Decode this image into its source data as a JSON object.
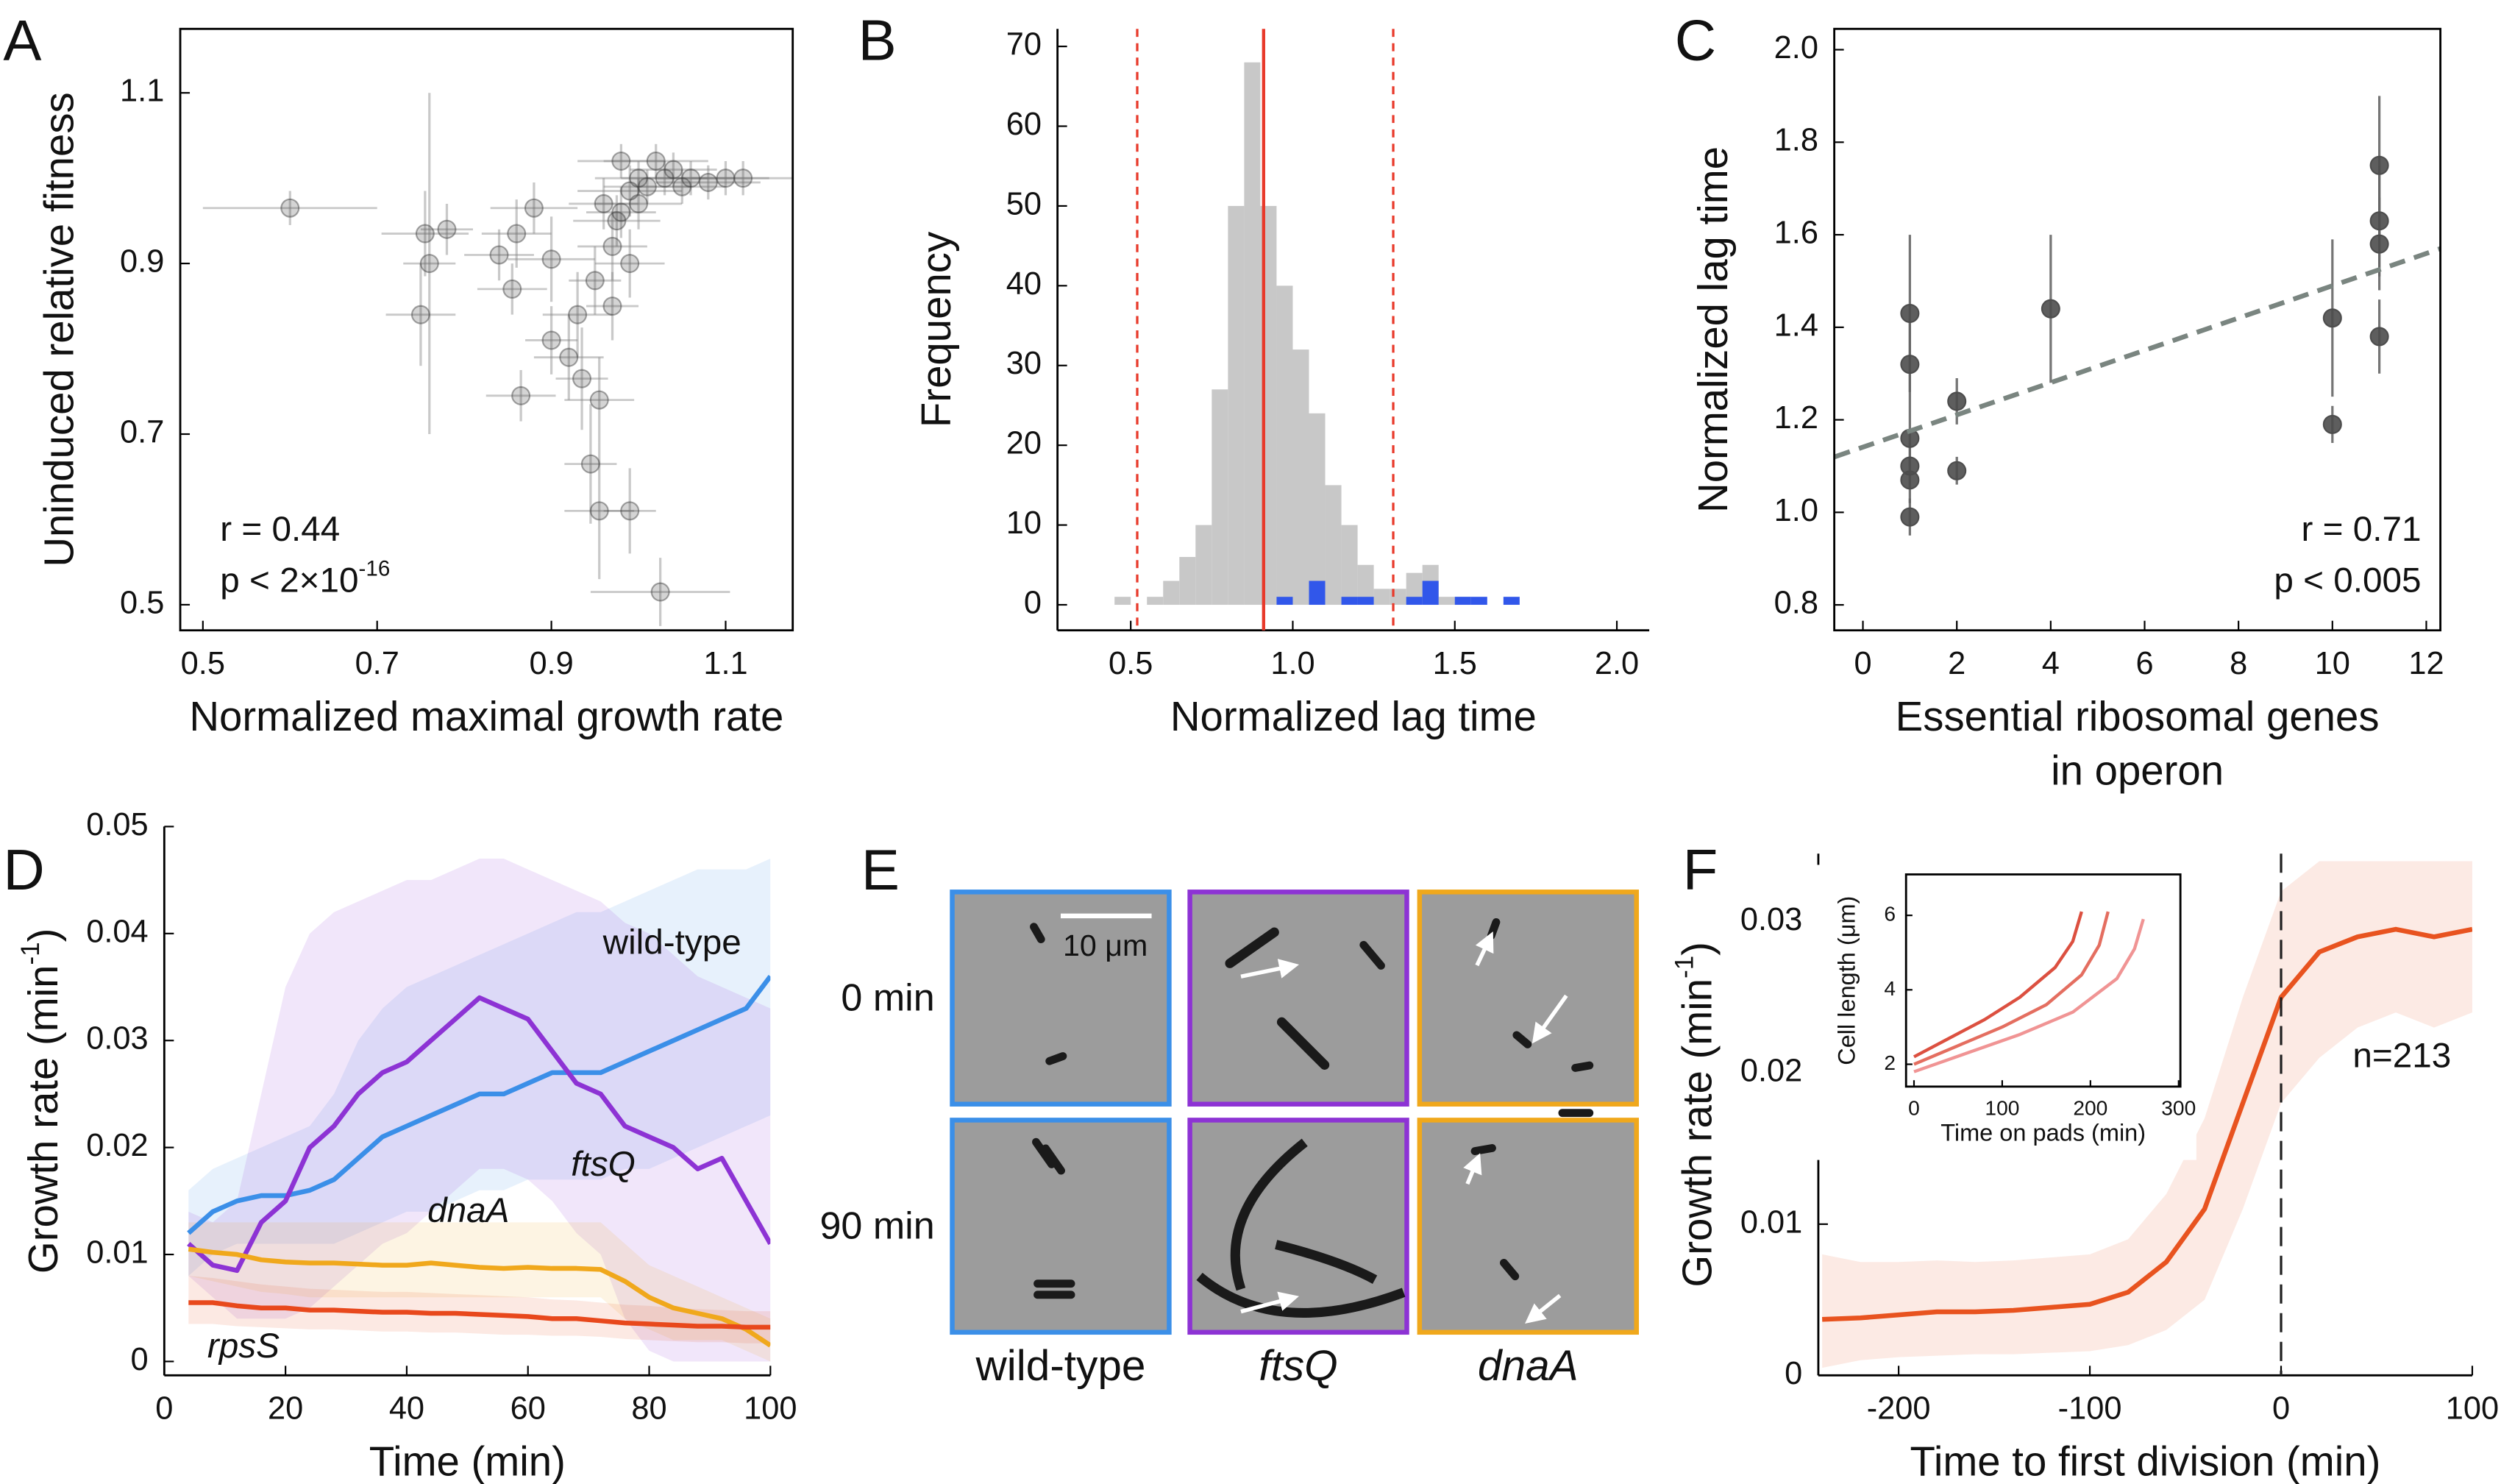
{
  "chart_data": [
    {
      "type": "scatter",
      "panel": "A",
      "box": true,
      "xlabel": "Normalized maximal growth rate",
      "ylabel": "Uninduced relative fitness",
      "xlim": [
        0.474,
        1.177
      ],
      "ylim": [
        0.47,
        1.175
      ],
      "xticks": [
        0.5,
        0.7,
        0.9,
        1.1
      ],
      "yticks": [
        0.5,
        0.7,
        0.9,
        1.1
      ],
      "color": "#3a3a3a",
      "x": [
        0.6,
        0.755,
        0.76,
        0.75,
        0.78,
        0.84,
        0.86,
        0.88,
        0.855,
        0.9,
        0.9,
        0.92,
        0.935,
        0.865,
        0.955,
        0.945,
        0.955,
        0.99,
        1.025,
        0.93,
        0.95,
        0.97,
        0.975,
        0.99,
        1.0,
        1.02,
        1.04,
        1.06,
        1.08,
        1.1,
        1.12,
        1.0,
        0.96,
        0.98,
        1.01,
        0.97,
        0.99,
        1.03,
        1.05,
        0.98
      ],
      "y": [
        0.965,
        0.935,
        0.9,
        0.84,
        0.94,
        0.91,
        0.935,
        0.965,
        0.87,
        0.905,
        0.81,
        0.79,
        0.765,
        0.745,
        0.74,
        0.665,
        0.61,
        0.61,
        0.515,
        0.84,
        0.88,
        0.92,
        0.95,
        0.985,
        1.0,
        1.02,
        1.01,
        1.0,
        0.995,
        1.0,
        1.0,
        0.97,
        0.97,
        1.02,
        0.99,
        0.85,
        0.9,
        1.0,
        0.99,
        0.96
      ],
      "xerr": [
        0.1,
        0.05,
        0.03,
        0.04,
        0.03,
        0.04,
        0.04,
        0.05,
        0.04,
        0.05,
        0.03,
        0.04,
        0.03,
        0.04,
        0.04,
        0.03,
        0.04,
        0.03,
        0.08,
        0.04,
        0.03,
        0.04,
        0.05,
        0.06,
        0.05,
        0.06,
        0.05,
        0.05,
        0.06,
        0.05,
        0.06,
        0.05,
        0.04,
        0.05,
        0.05,
        0.03,
        0.04,
        0.05,
        0.05,
        0.04
      ],
      "yerr": [
        0.02,
        0.05,
        0.2,
        0.06,
        0.03,
        0.03,
        0.04,
        0.03,
        0.03,
        0.05,
        0.04,
        0.05,
        0.06,
        0.03,
        0.05,
        0.07,
        0.08,
        0.05,
        0.04,
        0.05,
        0.04,
        0.04,
        0.03,
        0.03,
        0.02,
        0.02,
        0.02,
        0.02,
        0.02,
        0.02,
        0.02,
        0.03,
        0.03,
        0.02,
        0.02,
        0.04,
        0.04,
        0.02,
        0.02,
        0.03
      ],
      "annotations": [
        "r = 0.44",
        [
          "p < 2×10",
          "-16"
        ]
      ]
    },
    {
      "type": "histogram",
      "panel": "B",
      "box": false,
      "xlabel": "Normalized lag time",
      "ylabel": "Frequency",
      "xlim": [
        0.274,
        2.1
      ],
      "ylim": [
        -3.2,
        72.2
      ],
      "xticks": [
        0.5,
        {
          "value": 1.0,
          "label": "1.0"
        },
        1.5,
        {
          "value": 2.0,
          "label": "2.0"
        }
      ],
      "yticks": [
        0,
        10,
        20,
        30,
        40,
        50,
        60,
        70
      ],
      "series": [
        {
          "color": "#c8c8c8",
          "bins": [
            0.45,
            0.5,
            0.55,
            0.6,
            0.65,
            0.7,
            0.75,
            0.8,
            0.85,
            0.9,
            0.95,
            1.0,
            1.05,
            1.1,
            1.15,
            1.2,
            1.25,
            1.3,
            1.35,
            1.4,
            1.45,
            1.5,
            1.55
          ],
          "values": [
            1,
            0,
            1,
            3,
            6,
            10,
            27,
            50,
            68,
            50,
            40,
            32,
            24,
            15,
            10,
            5,
            2,
            2,
            4,
            5,
            1,
            1
          ]
        },
        {
          "color": "#3157ea",
          "bins": [
            0.95,
            1.0,
            1.05,
            1.1,
            1.15,
            1.2,
            1.25,
            1.3,
            1.35,
            1.4,
            1.45,
            1.5,
            1.55,
            1.6,
            1.65,
            1.7,
            1.75
          ],
          "values": [
            1,
            0,
            3,
            0,
            1,
            1,
            0,
            0,
            1,
            3,
            0,
            1,
            1,
            0,
            1,
            0
          ]
        }
      ],
      "vlines": [
        {
          "value": 0.52,
          "style": "dashed"
        },
        {
          "value": 0.91,
          "style": "solid"
        },
        {
          "value": 1.31,
          "style": "dashed"
        }
      ],
      "vline_color": "#e8392a"
    },
    {
      "type": "scatter",
      "panel": "C",
      "box": true,
      "xlabel_lines": [
        "Essential ribosomal genes",
        "in operon"
      ],
      "ylabel": "Normalized lag time",
      "xlim": [
        -0.61,
        12.3
      ],
      "ylim": [
        0.745,
        2.045
      ],
      "xticks": [
        0,
        2,
        4,
        6,
        8,
        10,
        12
      ],
      "yticks": [
        0.8,
        {
          "value": 1.0,
          "label": "1.0"
        },
        1.2,
        1.4,
        1.6,
        1.8,
        {
          "value": 2.0,
          "label": "2.0"
        }
      ],
      "color": "#4d4d4d",
      "x": [
        1,
        1,
        1,
        1,
        1,
        1,
        2,
        2,
        4,
        10,
        10,
        11,
        11,
        11,
        11
      ],
      "y": [
        1.43,
        1.32,
        1.16,
        1.1,
        1.07,
        0.99,
        1.24,
        1.09,
        1.44,
        1.42,
        1.19,
        1.75,
        1.63,
        1.58,
        1.38
      ],
      "yerr": [
        0.17,
        0.1,
        0.06,
        0.05,
        0.05,
        0.04,
        0.05,
        0.03,
        0.16,
        0.17,
        0.04,
        0.15,
        0.12,
        0.1,
        0.08
      ],
      "fit": {
        "x": [
          -0.6,
          12.3
        ],
        "y": [
          1.12,
          1.57
        ],
        "color": "#7a8580"
      },
      "annotations": [
        "r = 0.71",
        "p < 0.005"
      ]
    },
    {
      "type": "line",
      "panel": "D",
      "box": false,
      "xlabel": "Time (min)",
      "ylabel": [
        "Growth rate (min",
        "-1",
        ")"
      ],
      "xlim": [
        0,
        100
      ],
      "ylim": [
        -0.0013,
        0.05
      ],
      "xticks": [
        0,
        20,
        40,
        60,
        80,
        100
      ],
      "yticks": [
        0,
        0.01,
        0.02,
        0.03,
        0.04,
        0.05
      ],
      "x": [
        4,
        8,
        12,
        16,
        20,
        24,
        28,
        32,
        36,
        40,
        44,
        48,
        52,
        56,
        60,
        64,
        68,
        72,
        76,
        80,
        84,
        88,
        92,
        96,
        100
      ],
      "series": [
        {
          "name": "wild-type",
          "color": "#3b8fe8",
          "values": [
            0.012,
            0.014,
            0.015,
            0.0155,
            0.0155,
            0.016,
            0.017,
            0.019,
            0.021,
            0.022,
            0.023,
            0.024,
            0.025,
            0.025,
            0.026,
            0.027,
            0.027,
            0.027,
            0.028,
            0.029,
            0.03,
            0.031,
            0.032,
            0.033,
            0.036
          ],
          "upper": [
            0.016,
            0.018,
            0.019,
            0.02,
            0.021,
            0.022,
            0.025,
            0.03,
            0.033,
            0.035,
            0.036,
            0.037,
            0.038,
            0.039,
            0.04,
            0.041,
            0.042,
            0.042,
            0.043,
            0.044,
            0.045,
            0.046,
            0.046,
            0.046,
            0.047
          ],
          "lower": [
            0.008,
            0.01,
            0.011,
            0.011,
            0.011,
            0.011,
            0.011,
            0.012,
            0.013,
            0.014,
            0.014,
            0.015,
            0.016,
            0.016,
            0.017,
            0.017,
            0.017,
            0.017,
            0.018,
            0.018,
            0.019,
            0.02,
            0.021,
            0.022,
            0.023
          ]
        },
        {
          "name": "ftsQ",
          "color": "#8d33d4",
          "values": [
            0.011,
            0.009,
            0.0085,
            0.013,
            0.015,
            0.02,
            0.022,
            0.025,
            0.027,
            0.028,
            0.03,
            0.032,
            0.034,
            0.033,
            0.032,
            0.029,
            0.026,
            0.025,
            0.022,
            0.021,
            0.02,
            0.018,
            0.019,
            0.015,
            0.011
          ],
          "upper": [
            0.014,
            0.013,
            0.015,
            0.025,
            0.035,
            0.04,
            0.042,
            0.043,
            0.044,
            0.045,
            0.045,
            0.046,
            0.047,
            0.047,
            0.046,
            0.045,
            0.044,
            0.043,
            0.041,
            0.04,
            0.038,
            0.036,
            0.035,
            0.034,
            0.033
          ],
          "lower": [
            0.008,
            0.006,
            0.004,
            0.004,
            0.004,
            0.005,
            0.007,
            0.009,
            0.011,
            0.012,
            0.014,
            0.016,
            0.018,
            0.018,
            0.017,
            0.015,
            0.012,
            0.01,
            0.004,
            0.001,
            0,
            0,
            0,
            0,
            0
          ]
        },
        {
          "name": "dnaA",
          "color": "#f0a81c",
          "values": [
            0.0105,
            0.0102,
            0.01,
            0.0095,
            0.0093,
            0.0092,
            0.0092,
            0.0091,
            0.009,
            0.009,
            0.0092,
            0.009,
            0.0088,
            0.0087,
            0.0088,
            0.0087,
            0.0087,
            0.0086,
            0.0075,
            0.006,
            0.005,
            0.0045,
            0.004,
            0.003,
            0.0015
          ],
          "upper": [
            0.013,
            0.013,
            0.013,
            0.013,
            0.013,
            0.013,
            0.013,
            0.013,
            0.013,
            0.013,
            0.013,
            0.013,
            0.013,
            0.013,
            0.013,
            0.013,
            0.013,
            0.013,
            0.011,
            0.009,
            0.008,
            0.007,
            0.006,
            0.005,
            0.004
          ],
          "lower": [
            0.008,
            0.0075,
            0.007,
            0.0065,
            0.0063,
            0.006,
            0.006,
            0.006,
            0.006,
            0.006,
            0.006,
            0.006,
            0.006,
            0.006,
            0.006,
            0.006,
            0.006,
            0.006,
            0.004,
            0.003,
            0.002,
            0.002,
            0.002,
            0.001,
            0
          ]
        },
        {
          "name": "rpsS",
          "color": "#e8481c",
          "values": [
            0.0055,
            0.0055,
            0.0052,
            0.005,
            0.005,
            0.0048,
            0.0048,
            0.0047,
            0.0046,
            0.0046,
            0.0045,
            0.0045,
            0.0044,
            0.0043,
            0.0042,
            0.004,
            0.004,
            0.0038,
            0.0036,
            0.0035,
            0.0034,
            0.0033,
            0.0033,
            0.0032,
            0.0032
          ],
          "upper": [
            0.008,
            0.0078,
            0.0075,
            0.0072,
            0.007,
            0.0068,
            0.0067,
            0.0066,
            0.0065,
            0.0065,
            0.0064,
            0.0063,
            0.0062,
            0.0061,
            0.006,
            0.0058,
            0.0057,
            0.0055,
            0.0053,
            0.0052,
            0.005,
            0.0049,
            0.0048,
            0.0047,
            0.0047
          ],
          "lower": [
            0.0035,
            0.0035,
            0.0033,
            0.0032,
            0.0031,
            0.003,
            0.003,
            0.0029,
            0.0028,
            0.0028,
            0.0027,
            0.0027,
            0.0026,
            0.0025,
            0.0025,
            0.0024,
            0.0024,
            0.0023,
            0.0021,
            0.002,
            0.0019,
            0.0018,
            0.0018,
            0.0017,
            0.0017
          ]
        }
      ]
    },
    {
      "type": "images",
      "panel": "E",
      "rows": [
        "0 min",
        "90 min"
      ],
      "columns": [
        {
          "label": "wild-type",
          "color": "#3b8fe8"
        },
        {
          "label": "ftsQ",
          "color": "#8d33d4"
        },
        {
          "label": "dnaA",
          "color": "#f0a81c"
        }
      ],
      "scale_bar": "10 μm"
    },
    {
      "type": "line",
      "panel": "F",
      "box": false,
      "xlabel": "Time to first division (min)",
      "ylabel": [
        "Growth rate (min",
        "-1",
        ")"
      ],
      "xlim": [
        -242,
        100
      ],
      "ylim": [
        0,
        0.0345
      ],
      "xticks": [
        -200,
        -100,
        0,
        100
      ],
      "yticks": [
        0,
        0.01,
        0.02,
        0.03
      ],
      "x": [
        -240,
        -220,
        -200,
        -180,
        -160,
        -140,
        -120,
        -100,
        -80,
        -60,
        -40,
        -20,
        0,
        20,
        40,
        60,
        80,
        100
      ],
      "series": [
        {
          "color": "#e8531f",
          "values": [
            0.0037,
            0.0038,
            0.004,
            0.0042,
            0.0042,
            0.0043,
            0.0045,
            0.0047,
            0.0055,
            0.0075,
            0.011,
            0.018,
            0.025,
            0.028,
            0.029,
            0.0295,
            0.029,
            0.0295
          ],
          "upper": [
            0.008,
            0.0075,
            0.0075,
            0.0076,
            0.0075,
            0.0076,
            0.0078,
            0.008,
            0.009,
            0.012,
            0.017,
            0.025,
            0.032,
            0.034,
            0.034,
            0.034,
            0.034,
            0.034
          ],
          "lower": [
            0.0005,
            0.001,
            0.0012,
            0.0013,
            0.0014,
            0.0014,
            0.0015,
            0.0016,
            0.002,
            0.003,
            0.005,
            0.011,
            0.018,
            0.021,
            0.023,
            0.024,
            0.023,
            0.024
          ]
        }
      ],
      "vlines": [
        {
          "value": 0,
          "style": "dashed"
        }
      ],
      "vline_color": "#222",
      "annotations": [
        "n=213"
      ],
      "inset": {
        "type": "line",
        "box": true,
        "xlabel": "Time on pads (min)",
        "ylabel": "Cell length (μm)",
        "xlim": [
          -9,
          302
        ],
        "ylim": [
          1.4,
          7.1
        ],
        "xticks": [
          0,
          100,
          200,
          300
        ],
        "yticks": [
          2,
          4,
          6
        ],
        "series": [
          {
            "color": "#dc5040",
            "x": [
              0,
              40,
              80,
              120,
              160,
              180,
              190
            ],
            "values": [
              2.2,
              2.7,
              3.2,
              3.8,
              4.6,
              5.3,
              6.1
            ]
          },
          {
            "color": "#e46e60",
            "x": [
              0,
              50,
              100,
              150,
              190,
              210,
              220
            ],
            "values": [
              2.0,
              2.5,
              3.0,
              3.6,
              4.4,
              5.2,
              6.1
            ]
          },
          {
            "color": "#f09494",
            "x": [
              0,
              60,
              120,
              180,
              230,
              250,
              260
            ],
            "values": [
              1.8,
              2.3,
              2.8,
              3.4,
              4.3,
              5.1,
              5.9
            ]
          }
        ]
      }
    }
  ]
}
